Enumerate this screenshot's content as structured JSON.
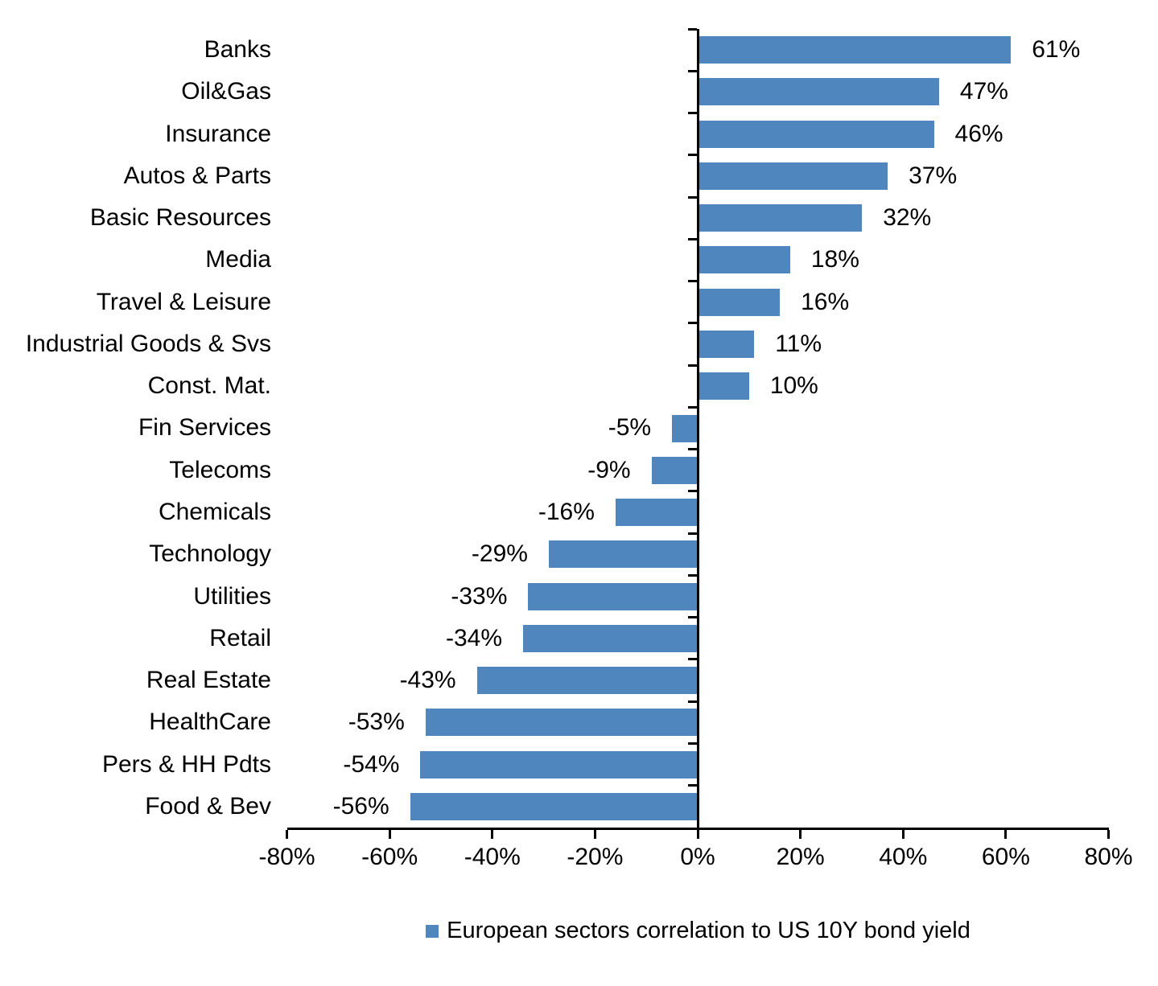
{
  "chart_data": {
    "type": "bar",
    "orientation": "horizontal",
    "title": "",
    "xlabel": "",
    "ylabel": "",
    "categories": [
      "Banks",
      "Oil&Gas",
      "Insurance",
      "Autos & Parts",
      "Basic Resources",
      "Media",
      "Travel & Leisure",
      "Industrial Goods & Svs",
      "Const. Mat.",
      "Fin Services",
      "Telecoms",
      "Chemicals",
      "Technology",
      "Utilities",
      "Retail",
      "Real Estate",
      "HealthCare",
      "Pers & HH Pdts",
      "Food & Bev"
    ],
    "values": [
      61,
      47,
      46,
      37,
      32,
      18,
      16,
      11,
      10,
      -5,
      -9,
      -16,
      -29,
      -33,
      -34,
      -43,
      -53,
      -54,
      -56
    ],
    "data_labels": [
      "61%",
      "47%",
      "46%",
      "37%",
      "32%",
      "18%",
      "16%",
      "11%",
      "10%",
      "-5%",
      "-9%",
      "-16%",
      "-29%",
      "-33%",
      "-34%",
      "-43%",
      "-53%",
      "-54%",
      "-56%"
    ],
    "xlim": [
      -80,
      80
    ],
    "x_tick_values": [
      -80,
      -60,
      -40,
      -20,
      0,
      20,
      40,
      60,
      80
    ],
    "x_tick_labels": [
      "-80%",
      "-60%",
      "-40%",
      "-20%",
      "0%",
      "20%",
      "40%",
      "60%",
      "80%"
    ],
    "grid": false,
    "legend": {
      "position": "bottom",
      "entries": [
        "European sectors correlation to US 10Y bond yield"
      ]
    },
    "bar_color": "#4E86BD",
    "axis_color": "#000000",
    "text_color": "#000000"
  }
}
